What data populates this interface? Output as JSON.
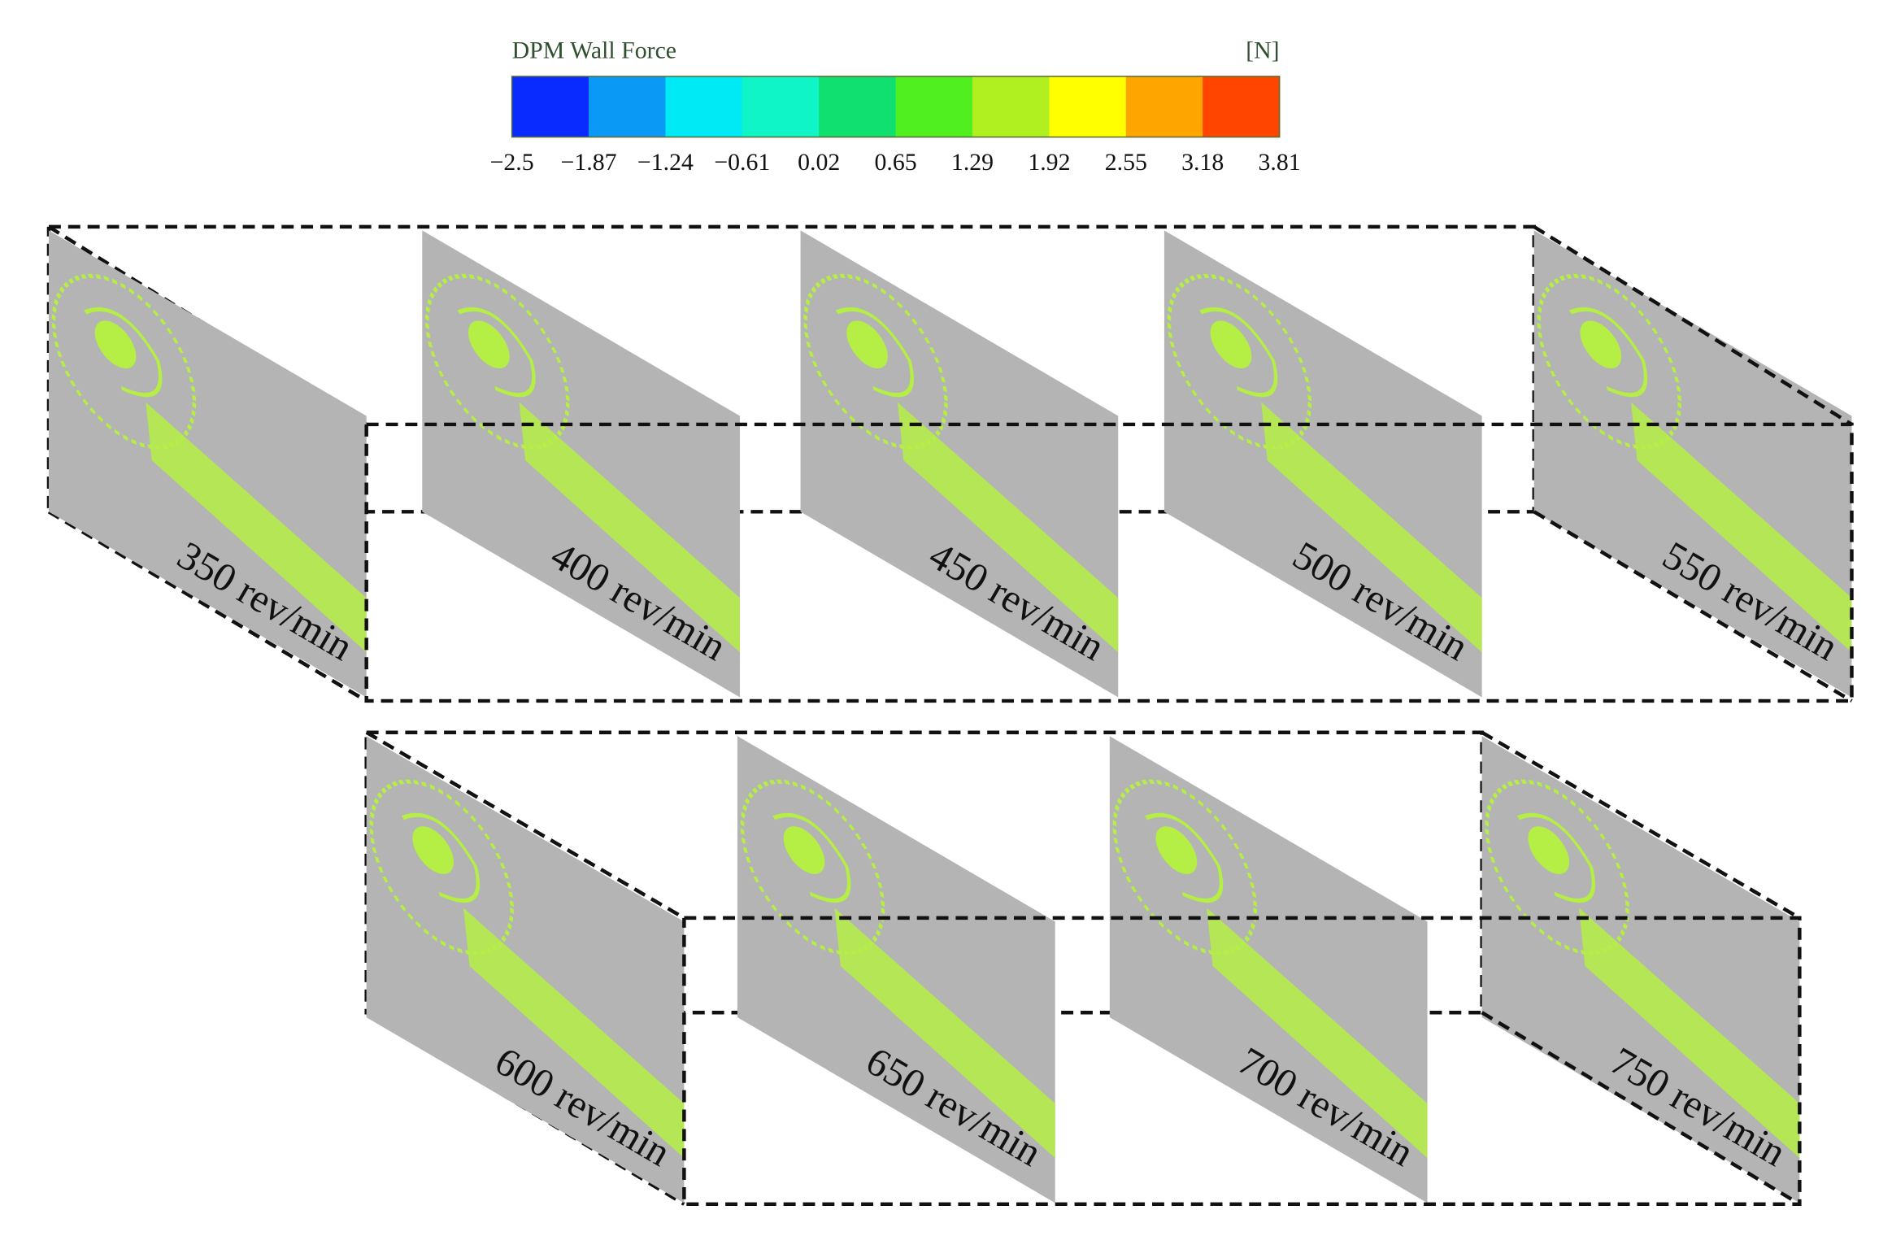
{
  "colorbar": {
    "title": "DPM Wall Force",
    "unit": "[N]",
    "ticks": [
      "−2.5",
      "−1.87",
      "−1.24",
      "−0.61",
      "0.02",
      "0.65",
      "1.29",
      "1.92",
      "2.55",
      "3.18",
      "3.81"
    ],
    "colors": [
      "#0a2bff",
      "#0a9af5",
      "#00eaf5",
      "#10f5c8",
      "#10e070",
      "#50f020",
      "#b0f020",
      "#ffff00",
      "#ffa500",
      "#ff4500"
    ]
  },
  "panels": [
    {
      "label": "350 rev/min"
    },
    {
      "label": "400 rev/min"
    },
    {
      "label": "450 rev/min"
    },
    {
      "label": "500 rev/min"
    },
    {
      "label": "550 rev/min"
    },
    {
      "label": "600 rev/min"
    },
    {
      "label": "650 rev/min"
    },
    {
      "label": "700 rev/min"
    },
    {
      "label": "750 rev/min"
    }
  ]
}
